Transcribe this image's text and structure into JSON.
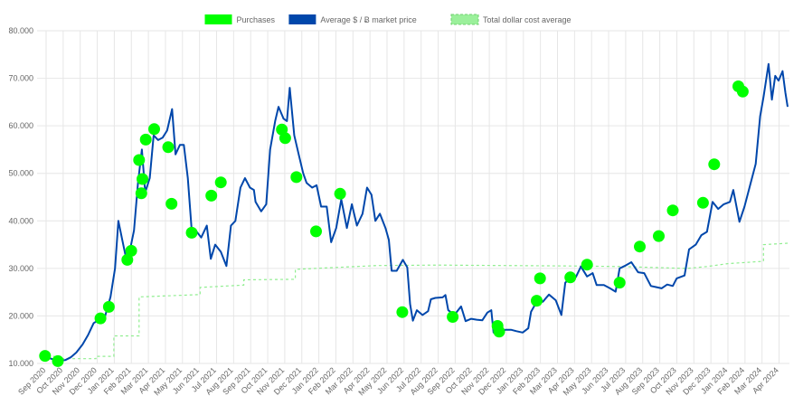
{
  "chart_data": {
    "type": "line",
    "ylim": [
      10000,
      80000
    ],
    "y_ticks": [
      "10.000",
      "20.000",
      "30.000",
      "40.000",
      "50.000",
      "60.000",
      "70.000",
      "80.000"
    ],
    "x_ticks": [
      "Sep 2020",
      "Oct 2020",
      "Nov 2020",
      "Dec 2020",
      "Jan 2021",
      "Feb 2021",
      "Mar 2021",
      "Apr 2021",
      "May 2021",
      "Jun 2021",
      "Jul 2021",
      "Aug 2021",
      "Sep 2021",
      "Oct 2021",
      "Nov 2021",
      "Dec 2021",
      "Jan 2022",
      "Feb 2022",
      "Mar 2022",
      "Apr 2022",
      "May 2022",
      "Jun 2022",
      "Jul 2022",
      "Aug 2022",
      "Sep 2022",
      "Oct 2022",
      "Nov 2022",
      "Dec 2022",
      "Jan 2023",
      "Feb 2023",
      "Mar 2023",
      "Apr 2023",
      "May 2023",
      "Jun 2023",
      "Jul 2023",
      "Aug 2023",
      "Sep 2023",
      "Oct 2023",
      "Nov 2023",
      "Dec 2023",
      "Jan 2024",
      "Feb 2024",
      "Mar 2024",
      "Apr 2024"
    ],
    "grid": true,
    "legend_position": "top-center",
    "legend": [
      {
        "name": "Purchases",
        "color": "#00ff00",
        "style": "points"
      },
      {
        "name": "Average $ / Ƀ market price",
        "color": "#0047ab",
        "style": "line"
      },
      {
        "name": "Total dollar cost average",
        "color": "#90ee90",
        "style": "dashed-line"
      }
    ],
    "series": [
      {
        "name": "Average $ / Ƀ market price",
        "color": "#0047ab",
        "points": [
          [
            "2020-08-25",
            11500
          ],
          [
            "2020-09-05",
            11200
          ],
          [
            "2020-09-15",
            10800
          ],
          [
            "2020-09-25",
            10600
          ],
          [
            "2020-10-05",
            10700
          ],
          [
            "2020-10-15",
            11300
          ],
          [
            "2020-10-25",
            12300
          ],
          [
            "2020-11-05",
            14000
          ],
          [
            "2020-11-15",
            16000
          ],
          [
            "2020-11-25",
            18500
          ],
          [
            "2020-12-05",
            19200
          ],
          [
            "2020-12-15",
            19800
          ],
          [
            "2020-12-25",
            24000
          ],
          [
            "2021-01-02",
            30000
          ],
          [
            "2021-01-08",
            40000
          ],
          [
            "2021-01-15",
            36000
          ],
          [
            "2021-01-22",
            32000
          ],
          [
            "2021-01-29",
            34000
          ],
          [
            "2021-02-05",
            38000
          ],
          [
            "2021-02-12",
            48000
          ],
          [
            "2021-02-19",
            55000
          ],
          [
            "2021-02-25",
            46000
          ],
          [
            "2021-03-05",
            49000
          ],
          [
            "2021-03-12",
            58000
          ],
          [
            "2021-03-20",
            57000
          ],
          [
            "2021-03-28",
            57500
          ],
          [
            "2021-04-05",
            59000
          ],
          [
            "2021-04-14",
            63500
          ],
          [
            "2021-04-20",
            54000
          ],
          [
            "2021-04-28",
            56000
          ],
          [
            "2021-05-05",
            56000
          ],
          [
            "2021-05-12",
            49000
          ],
          [
            "2021-05-19",
            38000
          ],
          [
            "2021-05-26",
            38000
          ],
          [
            "2021-06-05",
            36500
          ],
          [
            "2021-06-15",
            39000
          ],
          [
            "2021-06-22",
            32000
          ],
          [
            "2021-06-30",
            35000
          ],
          [
            "2021-07-10",
            33500
          ],
          [
            "2021-07-20",
            30500
          ],
          [
            "2021-07-28",
            39000
          ],
          [
            "2021-08-05",
            40000
          ],
          [
            "2021-08-14",
            47000
          ],
          [
            "2021-08-22",
            49000
          ],
          [
            "2021-08-31",
            47000
          ],
          [
            "2021-09-07",
            46500
          ],
          [
            "2021-09-10",
            44000
          ],
          [
            "2021-09-20",
            42000
          ],
          [
            "2021-09-29",
            43500
          ],
          [
            "2021-10-06",
            55000
          ],
          [
            "2021-10-15",
            61000
          ],
          [
            "2021-10-21",
            64000
          ],
          [
            "2021-10-30",
            61500
          ],
          [
            "2021-11-05",
            61000
          ],
          [
            "2021-11-10",
            68000
          ],
          [
            "2021-11-18",
            58000
          ],
          [
            "2021-11-26",
            54000
          ],
          [
            "2021-12-04",
            50000
          ],
          [
            "2021-12-10",
            48000
          ],
          [
            "2021-12-20",
            47000
          ],
          [
            "2021-12-28",
            47500
          ],
          [
            "2022-01-05",
            43000
          ],
          [
            "2022-01-15",
            43000
          ],
          [
            "2022-01-23",
            35500
          ],
          [
            "2022-02-01",
            38500
          ],
          [
            "2022-02-10",
            44500
          ],
          [
            "2022-02-20",
            38500
          ],
          [
            "2022-03-01",
            43500
          ],
          [
            "2022-03-10",
            39000
          ],
          [
            "2022-03-20",
            41500
          ],
          [
            "2022-03-28",
            47000
          ],
          [
            "2022-04-05",
            45500
          ],
          [
            "2022-04-12",
            40000
          ],
          [
            "2022-04-20",
            41500
          ],
          [
            "2022-04-30",
            38500
          ],
          [
            "2022-05-06",
            36000
          ],
          [
            "2022-05-11",
            29500
          ],
          [
            "2022-05-20",
            29500
          ],
          [
            "2022-05-31",
            31800
          ],
          [
            "2022-06-08",
            30200
          ],
          [
            "2022-06-13",
            22500
          ],
          [
            "2022-06-18",
            19000
          ],
          [
            "2022-06-25",
            21200
          ],
          [
            "2022-07-05",
            20200
          ],
          [
            "2022-07-15",
            21000
          ],
          [
            "2022-07-20",
            23500
          ],
          [
            "2022-07-28",
            23800
          ],
          [
            "2022-08-10",
            23900
          ],
          [
            "2022-08-15",
            24400
          ],
          [
            "2022-08-20",
            21200
          ],
          [
            "2022-08-31",
            20200
          ],
          [
            "2022-09-12",
            22000
          ],
          [
            "2022-09-20",
            18900
          ],
          [
            "2022-09-30",
            19400
          ],
          [
            "2022-10-10",
            19200
          ],
          [
            "2022-10-20",
            19100
          ],
          [
            "2022-10-29",
            20700
          ],
          [
            "2022-11-05",
            21200
          ],
          [
            "2022-11-09",
            16500
          ],
          [
            "2022-11-20",
            16300
          ],
          [
            "2022-11-30",
            17100
          ],
          [
            "2022-12-10",
            17100
          ],
          [
            "2022-12-20",
            16800
          ],
          [
            "2022-12-31",
            16500
          ],
          [
            "2023-01-10",
            17400
          ],
          [
            "2023-01-15",
            20900
          ],
          [
            "2023-01-25",
            23000
          ],
          [
            "2023-02-05",
            23000
          ],
          [
            "2023-02-16",
            24500
          ],
          [
            "2023-02-28",
            23300
          ],
          [
            "2023-03-10",
            20200
          ],
          [
            "2023-03-17",
            27000
          ],
          [
            "2023-03-25",
            27800
          ],
          [
            "2023-04-05",
            28200
          ],
          [
            "2023-04-14",
            30400
          ],
          [
            "2023-04-25",
            28300
          ],
          [
            "2023-05-05",
            29000
          ],
          [
            "2023-05-12",
            26500
          ],
          [
            "2023-05-25",
            26500
          ],
          [
            "2023-06-05",
            25800
          ],
          [
            "2023-06-15",
            25100
          ],
          [
            "2023-06-22",
            30000
          ],
          [
            "2023-07-01",
            30500
          ],
          [
            "2023-07-13",
            31300
          ],
          [
            "2023-07-25",
            29200
          ],
          [
            "2023-08-05",
            29000
          ],
          [
            "2023-08-17",
            26300
          ],
          [
            "2023-08-25",
            26100
          ],
          [
            "2023-09-05",
            25800
          ],
          [
            "2023-09-15",
            26600
          ],
          [
            "2023-09-25",
            26300
          ],
          [
            "2023-10-02",
            27900
          ],
          [
            "2023-10-16",
            28500
          ],
          [
            "2023-10-24",
            34000
          ],
          [
            "2023-11-05",
            35000
          ],
          [
            "2023-11-15",
            37000
          ],
          [
            "2023-11-25",
            37700
          ],
          [
            "2023-12-05",
            44000
          ],
          [
            "2023-12-15",
            42500
          ],
          [
            "2023-12-25",
            43500
          ],
          [
            "2024-01-05",
            44000
          ],
          [
            "2024-01-11",
            46500
          ],
          [
            "2024-01-22",
            39800
          ],
          [
            "2024-01-31",
            43000
          ],
          [
            "2024-02-10",
            47500
          ],
          [
            "2024-02-20",
            52000
          ],
          [
            "2024-02-28",
            62000
          ],
          [
            "2024-03-05",
            66000
          ],
          [
            "2024-03-14",
            73000
          ],
          [
            "2024-03-20",
            65500
          ],
          [
            "2024-03-26",
            70500
          ],
          [
            "2024-04-01",
            69500
          ],
          [
            "2024-04-08",
            71500
          ],
          [
            "2024-04-13",
            67000
          ],
          [
            "2024-04-17",
            64000
          ]
        ]
      },
      {
        "name": "Total dollar cost average",
        "color": "#90ee90",
        "points": [
          [
            "2020-08-25",
            11500
          ],
          [
            "2020-09-28",
            11500
          ],
          [
            "2020-09-28",
            11000
          ],
          [
            "2020-11-29",
            11000
          ],
          [
            "2020-11-29",
            11500
          ],
          [
            "2020-12-31",
            11500
          ],
          [
            "2020-12-31",
            15800
          ],
          [
            "2021-02-14",
            15800
          ],
          [
            "2021-02-14",
            24000
          ],
          [
            "2021-06-03",
            24500
          ],
          [
            "2021-06-03",
            26000
          ],
          [
            "2021-08-20",
            26500
          ],
          [
            "2021-08-20",
            27600
          ],
          [
            "2021-11-20",
            27700
          ],
          [
            "2021-11-20",
            29800
          ],
          [
            "2022-02-01",
            30200
          ],
          [
            "2022-04-15",
            30600
          ],
          [
            "2022-08-01",
            30700
          ],
          [
            "2023-04-01",
            30500
          ],
          [
            "2023-06-26",
            30400
          ],
          [
            "2023-10-20",
            30000
          ],
          [
            "2023-11-25",
            30400
          ],
          [
            "2024-01-01",
            31000
          ],
          [
            "2024-03-05",
            31500
          ],
          [
            "2024-03-05",
            35000
          ],
          [
            "2024-04-17",
            35300
          ]
        ]
      },
      {
        "name": "Purchases",
        "color": "#00ff00",
        "points": [
          [
            "2020-08-30",
            11600
          ],
          [
            "2020-09-22",
            10500
          ],
          [
            "2020-12-07",
            19500
          ],
          [
            "2020-12-22",
            21900
          ],
          [
            "2021-01-24",
            31800
          ],
          [
            "2021-01-31",
            33700
          ],
          [
            "2021-02-14",
            52800
          ],
          [
            "2021-02-18",
            45800
          ],
          [
            "2021-02-20",
            48800
          ],
          [
            "2021-02-26",
            57100
          ],
          [
            "2021-03-13",
            59300
          ],
          [
            "2021-04-07",
            55500
          ],
          [
            "2021-04-13",
            43600
          ],
          [
            "2021-05-19",
            37500
          ],
          [
            "2021-06-23",
            45300
          ],
          [
            "2021-07-10",
            48100
          ],
          [
            "2021-10-27",
            59200
          ],
          [
            "2021-11-02",
            57400
          ],
          [
            "2021-11-22",
            49200
          ],
          [
            "2021-12-27",
            37800
          ],
          [
            "2022-02-08",
            45700
          ],
          [
            "2022-05-30",
            20800
          ],
          [
            "2022-08-28",
            19800
          ],
          [
            "2022-11-16",
            17900
          ],
          [
            "2022-11-19",
            16700
          ],
          [
            "2023-01-25",
            23200
          ],
          [
            "2023-01-31",
            27900
          ],
          [
            "2023-03-26",
            28100
          ],
          [
            "2023-04-25",
            30800
          ],
          [
            "2023-06-22",
            27000
          ],
          [
            "2023-07-28",
            34600
          ],
          [
            "2023-08-31",
            36800
          ],
          [
            "2023-09-25",
            42200
          ],
          [
            "2023-11-18",
            43800
          ],
          [
            "2023-12-08",
            51900
          ],
          [
            "2024-01-20",
            68300
          ],
          [
            "2024-01-28",
            67200
          ]
        ]
      }
    ]
  }
}
